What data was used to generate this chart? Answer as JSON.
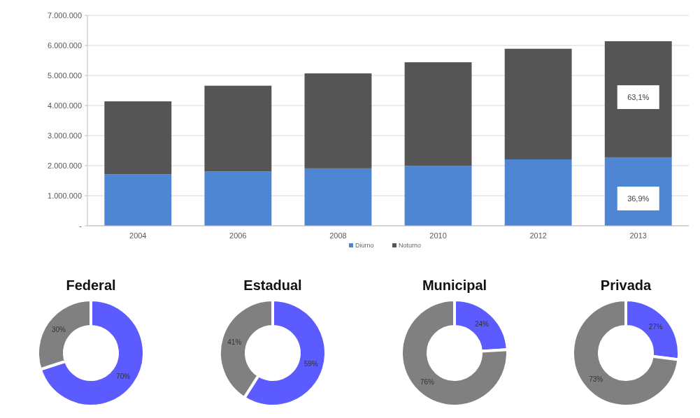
{
  "chart_data": [
    {
      "type": "bar",
      "stacked": true,
      "categories": [
        "2004",
        "2006",
        "2008",
        "2010",
        "2012",
        "2013"
      ],
      "series": [
        {
          "name": "Diurno",
          "color": "#4f86d3",
          "values": [
            1710000,
            1810000,
            1910000,
            1990000,
            2210000,
            2280000
          ]
        },
        {
          "name": "Noturno",
          "color": "#555555",
          "values": [
            2430000,
            2850000,
            3160000,
            3450000,
            3680000,
            3860000
          ]
        }
      ],
      "annotations": [
        "36,9%",
        "63,1%"
      ],
      "ylim": [
        0,
        7000000
      ],
      "yticks": [
        {
          "value": 0,
          "label": "-"
        },
        {
          "value": 1000000,
          "label": "1.000.000"
        },
        {
          "value": 2000000,
          "label": "2.000.000"
        },
        {
          "value": 3000000,
          "label": "3.000.000"
        },
        {
          "value": 4000000,
          "label": "4.000.000"
        },
        {
          "value": 5000000,
          "label": "5.000.000"
        },
        {
          "value": 6000000,
          "label": "6.000.000"
        },
        {
          "value": 7000000,
          "label": "7.000.000"
        }
      ],
      "grid": "y",
      "legend": "bottom"
    },
    {
      "type": "donut",
      "title": "Federal",
      "categories": [
        null,
        null
      ],
      "values": [
        70,
        30
      ],
      "colors": [
        "#5b5bff",
        "#808080"
      ],
      "value_labels": [
        "70%",
        "30%"
      ]
    },
    {
      "type": "donut",
      "title": "Estadual",
      "categories": [
        null,
        null
      ],
      "values": [
        59,
        41
      ],
      "colors": [
        "#5b5bff",
        "#808080"
      ],
      "value_labels": [
        "59%",
        "41%"
      ]
    },
    {
      "type": "donut",
      "title": "Municipal",
      "categories": [
        null,
        null
      ],
      "values": [
        24,
        76
      ],
      "colors": [
        "#5b5bff",
        "#808080"
      ],
      "value_labels": [
        "24%",
        "76%"
      ]
    },
    {
      "type": "donut",
      "title": "Privada",
      "categories": [
        null,
        null
      ],
      "values": [
        27,
        73
      ],
      "colors": [
        "#5b5bff",
        "#808080"
      ],
      "value_labels": [
        "27%",
        "73%"
      ]
    }
  ]
}
